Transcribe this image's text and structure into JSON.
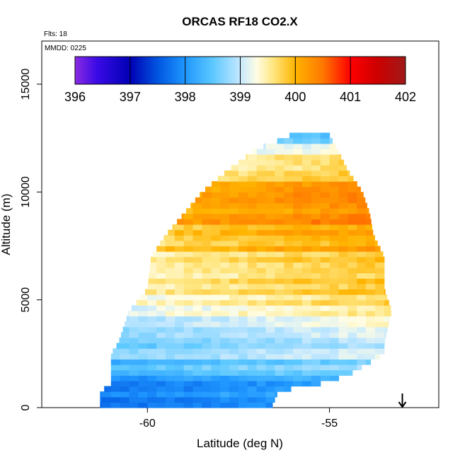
{
  "chart_data": {
    "type": "heatmap",
    "title": "ORCAS RF18 CO2.X",
    "xlabel": "Latitude (deg N)",
    "ylabel": "Altitude (m)",
    "xlim": [
      -62.9,
      -52.0
    ],
    "ylim": [
      0,
      17000
    ],
    "xticks": [
      -60,
      -55
    ],
    "xtick_labels": [
      "-60",
      "-55"
    ],
    "yticks": [
      0,
      5000,
      10000,
      15000
    ],
    "ytick_labels": [
      "0",
      "5000",
      "10000",
      "15000"
    ],
    "annotations": {
      "flights": "Flts: 18",
      "mmdd": "MMDD: 0225"
    },
    "colorbar": {
      "range": [
        396,
        402
      ],
      "ticks": [
        396,
        397,
        398,
        399,
        400,
        401,
        402
      ],
      "tick_labels": [
        "396",
        "397",
        "398",
        "399",
        "400",
        "401",
        "402"
      ],
      "colors": [
        {
          "value": 396.0,
          "color": "#8a2be2"
        },
        {
          "value": 396.4,
          "color": "#3a0ae6"
        },
        {
          "value": 397.0,
          "color": "#0000b4"
        },
        {
          "value": 397.5,
          "color": "#0055e0"
        },
        {
          "value": 398.0,
          "color": "#1f97ff"
        },
        {
          "value": 398.5,
          "color": "#5cc8ff"
        },
        {
          "value": 399.0,
          "color": "#c4e8ff"
        },
        {
          "value": 399.3,
          "color": "#fffde4"
        },
        {
          "value": 399.6,
          "color": "#ffe680"
        },
        {
          "value": 400.0,
          "color": "#ffb400"
        },
        {
          "value": 400.5,
          "color": "#ff7800"
        },
        {
          "value": 401.0,
          "color": "#ff0000"
        },
        {
          "value": 401.5,
          "color": "#cc0000"
        },
        {
          "value": 402.0,
          "color": "#a01a1a"
        }
      ]
    },
    "profile": {
      "lat_step": 0.25,
      "alt_step": 250,
      "edges": [
        {
          "alt": 0,
          "lat_min": -61.3,
          "lat_max": -56.6
        },
        {
          "alt": 800,
          "lat_min": -61.3,
          "lat_max": -56.4
        },
        {
          "alt": 1000,
          "lat_min": -61.0,
          "lat_max": -55.5
        },
        {
          "alt": 1500,
          "lat_min": -61.0,
          "lat_max": -54.5
        },
        {
          "alt": 2500,
          "lat_min": -61.0,
          "lat_max": -53.5
        },
        {
          "alt": 3000,
          "lat_min": -60.8,
          "lat_max": -53.5
        },
        {
          "alt": 4500,
          "lat_min": -60.5,
          "lat_max": -53.3
        },
        {
          "alt": 5500,
          "lat_min": -60.0,
          "lat_max": -53.5
        },
        {
          "alt": 7000,
          "lat_min": -59.9,
          "lat_max": -53.5
        },
        {
          "alt": 8000,
          "lat_min": -59.5,
          "lat_max": -53.8
        },
        {
          "alt": 9000,
          "lat_min": -59.0,
          "lat_max": -53.9
        },
        {
          "alt": 10000,
          "lat_min": -58.5,
          "lat_max": -54.1
        },
        {
          "alt": 11000,
          "lat_min": -57.8,
          "lat_max": -54.5
        },
        {
          "alt": 12000,
          "lat_min": -57.0,
          "lat_max": -54.8
        },
        {
          "alt": 12600,
          "lat_min": -56.1,
          "lat_max": -55.0
        }
      ],
      "co2_vs_altitude": [
        {
          "alt": 0,
          "co2": 397.8
        },
        {
          "alt": 1000,
          "co2": 398.1
        },
        {
          "alt": 2000,
          "co2": 398.6
        },
        {
          "alt": 3000,
          "co2": 398.9
        },
        {
          "alt": 4000,
          "co2": 399.2
        },
        {
          "alt": 5000,
          "co2": 399.45
        },
        {
          "alt": 6000,
          "co2": 399.55
        },
        {
          "alt": 7000,
          "co2": 399.8
        },
        {
          "alt": 8000,
          "co2": 400.0
        },
        {
          "alt": 9000,
          "co2": 400.15
        },
        {
          "alt": 10000,
          "co2": 400.05
        },
        {
          "alt": 11000,
          "co2": 399.75
        },
        {
          "alt": 12000,
          "co2": 399.2
        },
        {
          "alt": 12600,
          "co2": 398.4
        }
      ],
      "latitude_gradient": 0.06,
      "latitude_reference": -57.5
    },
    "marker": {
      "label": "arrow",
      "lat": -53.0
    }
  }
}
